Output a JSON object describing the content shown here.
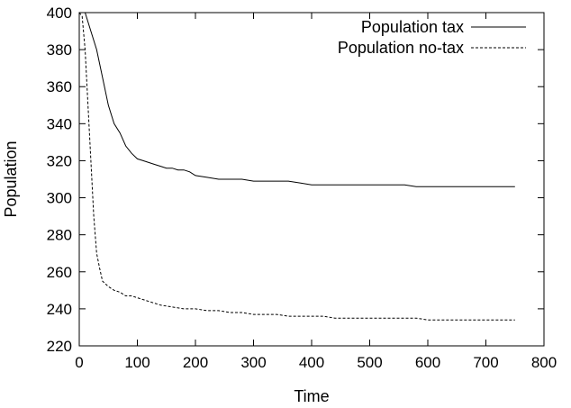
{
  "chart_data": {
    "type": "line",
    "title": "",
    "xlabel": "Time",
    "ylabel": "Population",
    "xlim": [
      0,
      800
    ],
    "ylim": [
      220,
      400
    ],
    "xticks": [
      0,
      100,
      200,
      300,
      400,
      500,
      600,
      700,
      800
    ],
    "yticks": [
      220,
      240,
      260,
      280,
      300,
      320,
      340,
      360,
      380,
      400
    ],
    "grid": false,
    "legend_position": "top-right",
    "series": [
      {
        "name": "Population tax",
        "style": "solid",
        "color": "#000000",
        "x": [
          0,
          10,
          20,
          30,
          40,
          50,
          60,
          70,
          80,
          90,
          100,
          110,
          120,
          130,
          140,
          150,
          160,
          170,
          180,
          190,
          200,
          220,
          240,
          260,
          280,
          300,
          320,
          340,
          360,
          380,
          400,
          420,
          440,
          460,
          480,
          500,
          520,
          540,
          560,
          580,
          600,
          650,
          700,
          750
        ],
        "y": [
          400,
          400,
          390,
          380,
          365,
          350,
          340,
          335,
          328,
          324,
          321,
          320,
          319,
          318,
          317,
          316,
          316,
          315,
          315,
          314,
          312,
          311,
          310,
          310,
          310,
          309,
          309,
          309,
          309,
          308,
          307,
          307,
          307,
          307,
          307,
          307,
          307,
          307,
          307,
          306,
          306,
          306,
          306,
          306
        ]
      },
      {
        "name": "Population no-tax",
        "style": "dashed",
        "color": "#000000",
        "x": [
          0,
          5,
          10,
          15,
          20,
          25,
          30,
          35,
          40,
          50,
          60,
          70,
          80,
          90,
          100,
          120,
          140,
          160,
          180,
          200,
          220,
          240,
          260,
          280,
          300,
          320,
          340,
          360,
          380,
          400,
          420,
          440,
          460,
          480,
          500,
          520,
          540,
          560,
          580,
          600,
          650,
          700,
          750
        ],
        "y": [
          400,
          398,
          380,
          350,
          320,
          290,
          270,
          262,
          255,
          252,
          250,
          249,
          247,
          247,
          246,
          244,
          242,
          241,
          240,
          240,
          239,
          239,
          238,
          238,
          237,
          237,
          237,
          236,
          236,
          236,
          236,
          235,
          235,
          235,
          235,
          235,
          235,
          235,
          235,
          234,
          234,
          234,
          234
        ]
      }
    ]
  }
}
